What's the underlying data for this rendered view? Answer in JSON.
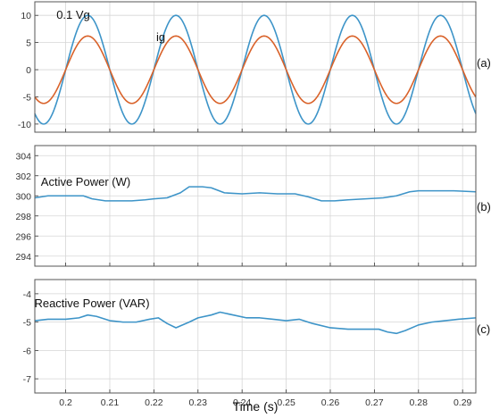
{
  "chart_data": [
    {
      "id": "a",
      "type": "line",
      "panel_label": "(a)",
      "x_range": [
        0.193,
        0.293
      ],
      "ylim": [
        -11.5,
        12.5
      ],
      "y_ticks": [
        10,
        5,
        0,
        -5,
        -10
      ],
      "grid": true,
      "series": [
        {
          "name": "0.1 Vg",
          "color": "#3d94c8",
          "amplitude": 10,
          "period_s": 0.02,
          "peak_time_s": 0.205
        },
        {
          "name": "ig",
          "color": "#d9622a",
          "amplitude": 6.2,
          "period_s": 0.02,
          "peak_time_s": 0.205
        }
      ]
    },
    {
      "id": "b",
      "type": "line",
      "panel_label": "(b)",
      "x_range": [
        0.193,
        0.293
      ],
      "ylim": [
        293,
        305
      ],
      "y_ticks": [
        304,
        302,
        300,
        298,
        296,
        294
      ],
      "grid": true,
      "series": [
        {
          "name": "Active Power (W)",
          "color": "#3d94c8",
          "x": [
            0.193,
            0.196,
            0.2,
            0.204,
            0.206,
            0.209,
            0.212,
            0.215,
            0.218,
            0.22,
            0.223,
            0.226,
            0.228,
            0.231,
            0.233,
            0.236,
            0.24,
            0.244,
            0.248,
            0.252,
            0.255,
            0.258,
            0.261,
            0.264,
            0.268,
            0.272,
            0.275,
            0.278,
            0.28,
            0.284,
            0.288,
            0.293
          ],
          "y": [
            299.8,
            300.0,
            300.0,
            300.0,
            299.7,
            299.5,
            299.5,
            299.5,
            299.6,
            299.7,
            299.8,
            300.3,
            300.9,
            300.9,
            300.8,
            300.3,
            300.2,
            300.3,
            300.2,
            300.2,
            299.9,
            299.5,
            299.5,
            299.6,
            299.7,
            299.8,
            300.0,
            300.4,
            300.5,
            300.5,
            300.5,
            300.4
          ]
        }
      ]
    },
    {
      "id": "c",
      "type": "line",
      "panel_label": "(c)",
      "x_range": [
        0.193,
        0.293
      ],
      "ylim": [
        -7.5,
        -3.5
      ],
      "y_ticks": [
        -4,
        -5,
        -6,
        -7
      ],
      "x_ticks": [
        0.2,
        0.21,
        0.22,
        0.23,
        0.24,
        0.25,
        0.26,
        0.27,
        0.28,
        0.29
      ],
      "xlabel": "Time (s)",
      "grid": true,
      "series": [
        {
          "name": "Reactive Power (VAR)",
          "color": "#3d94c8",
          "x": [
            0.193,
            0.196,
            0.2,
            0.203,
            0.205,
            0.207,
            0.21,
            0.213,
            0.216,
            0.219,
            0.221,
            0.223,
            0.225,
            0.228,
            0.23,
            0.233,
            0.235,
            0.238,
            0.241,
            0.244,
            0.247,
            0.25,
            0.253,
            0.256,
            0.26,
            0.264,
            0.268,
            0.271,
            0.273,
            0.275,
            0.277,
            0.28,
            0.283,
            0.286,
            0.289,
            0.293
          ],
          "y": [
            -4.95,
            -4.9,
            -4.9,
            -4.85,
            -4.75,
            -4.8,
            -4.95,
            -5.0,
            -5.0,
            -4.9,
            -4.85,
            -5.05,
            -5.2,
            -5.0,
            -4.85,
            -4.75,
            -4.65,
            -4.75,
            -4.85,
            -4.85,
            -4.9,
            -4.95,
            -4.9,
            -5.05,
            -5.2,
            -5.25,
            -5.25,
            -5.25,
            -5.35,
            -5.4,
            -5.3,
            -5.1,
            -5.0,
            -4.95,
            -4.9,
            -4.85
          ]
        }
      ]
    }
  ]
}
